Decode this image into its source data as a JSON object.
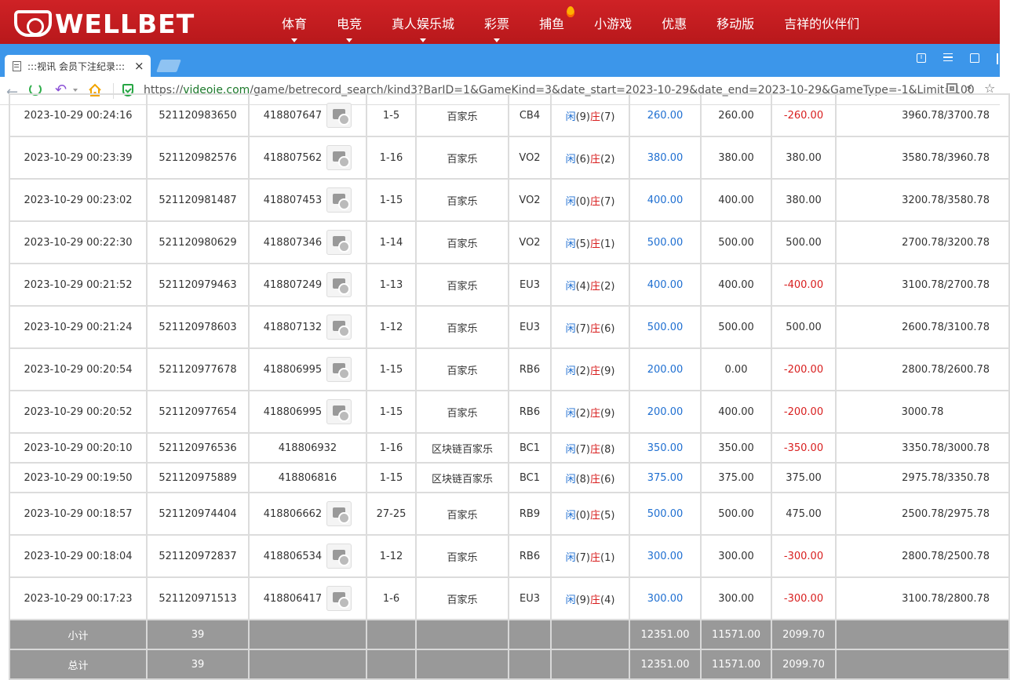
{
  "site": {
    "logo_text": "WELLBET",
    "nav": [
      {
        "label": "体育",
        "caret": true
      },
      {
        "label": "电竞",
        "caret": true
      },
      {
        "label": "真人娱乐城",
        "caret": true
      },
      {
        "label": "彩票",
        "caret": true
      },
      {
        "label": "捕鱼",
        "hot": true
      },
      {
        "label": "小游戏"
      },
      {
        "label": "优惠"
      },
      {
        "label": "移动版"
      },
      {
        "label": "吉祥的伙伴们"
      }
    ]
  },
  "browser": {
    "tab_title": ":::视讯 会员下注纪录:::",
    "tab_close": "×",
    "url_prefix": "https://",
    "url_host": "videoie.com",
    "url_path": "/game/betrecord_search/kind3?BarID=1&GameKind=3&date_start=2023-10-29&date_end=2023-10-29&GameType=-1&Limit=100",
    "bolt": "⚡",
    "star": "☆",
    "info": "i"
  },
  "labels": {
    "player": "闲",
    "banker": "庄"
  },
  "rows": [
    {
      "time": "2023-10-29 00:24:16",
      "bet_id": "521120983650",
      "round_id": "418807647",
      "video": true,
      "shoe": "1-5",
      "game": "百家乐",
      "table": "CB4",
      "player": "(9)",
      "banker": "(7)",
      "bet": "260.00",
      "valid": "260.00",
      "win": "-260.00",
      "win_neg": true,
      "balance": "3960.78/3700.78",
      "h": 54
    },
    {
      "time": "2023-10-29 00:23:39",
      "bet_id": "521120982576",
      "round_id": "418807562",
      "video": true,
      "shoe": "1-16",
      "game": "百家乐",
      "table": "VO2",
      "player": "(6)",
      "banker": "(2)",
      "bet": "380.00",
      "valid": "380.00",
      "win": "380.00",
      "win_neg": false,
      "balance": "3580.78/3960.78",
      "h": 54
    },
    {
      "time": "2023-10-29 00:23:02",
      "bet_id": "521120981487",
      "round_id": "418807453",
      "video": true,
      "shoe": "1-15",
      "game": "百家乐",
      "table": "VO2",
      "player": "(0)",
      "banker": "(7)",
      "bet": "400.00",
      "valid": "400.00",
      "win": "380.00",
      "win_neg": false,
      "balance": "3200.78/3580.78",
      "h": 54
    },
    {
      "time": "2023-10-29 00:22:30",
      "bet_id": "521120980629",
      "round_id": "418807346",
      "video": true,
      "shoe": "1-14",
      "game": "百家乐",
      "table": "VO2",
      "player": "(5)",
      "banker": "(1)",
      "bet": "500.00",
      "valid": "500.00",
      "win": "500.00",
      "win_neg": false,
      "balance": "2700.78/3200.78",
      "h": 54
    },
    {
      "time": "2023-10-29 00:21:52",
      "bet_id": "521120979463",
      "round_id": "418807249",
      "video": true,
      "shoe": "1-13",
      "game": "百家乐",
      "table": "EU3",
      "player": "(4)",
      "banker": "(2)",
      "bet": "400.00",
      "valid": "400.00",
      "win": "-400.00",
      "win_neg": true,
      "balance": "3100.78/2700.78",
      "h": 54
    },
    {
      "time": "2023-10-29 00:21:24",
      "bet_id": "521120978603",
      "round_id": "418807132",
      "video": true,
      "shoe": "1-12",
      "game": "百家乐",
      "table": "EU3",
      "player": "(7)",
      "banker": "(6)",
      "bet": "500.00",
      "valid": "500.00",
      "win": "500.00",
      "win_neg": false,
      "balance": "2600.78/3100.78",
      "h": 54
    },
    {
      "time": "2023-10-29 00:20:54",
      "bet_id": "521120977678",
      "round_id": "418806995",
      "video": true,
      "shoe": "1-15",
      "game": "百家乐",
      "table": "RB6",
      "player": "(2)",
      "banker": "(9)",
      "bet": "200.00",
      "valid": "0.00",
      "win": "-200.00",
      "win_neg": true,
      "balance": "2800.78/2600.78",
      "h": 54
    },
    {
      "time": "2023-10-29 00:20:52",
      "bet_id": "521120977654",
      "round_id": "418806995",
      "video": true,
      "shoe": "1-15",
      "game": "百家乐",
      "table": "RB6",
      "player": "(2)",
      "banker": "(9)",
      "bet": "200.00",
      "valid": "400.00",
      "win": "-200.00",
      "win_neg": true,
      "balance": "3000.78",
      "balance_center": true,
      "h": 54
    },
    {
      "time": "2023-10-29 00:20:10",
      "bet_id": "521120976536",
      "round_id": "418806932",
      "video": false,
      "shoe": "1-16",
      "game": "区块链百家乐",
      "table": "BC1",
      "player": "(7)",
      "banker": "(8)",
      "bet": "350.00",
      "valid": "350.00",
      "win": "-350.00",
      "win_neg": true,
      "balance": "3350.78/3000.78",
      "h": 38
    },
    {
      "time": "2023-10-29 00:19:50",
      "bet_id": "521120975889",
      "round_id": "418806816",
      "video": false,
      "shoe": "1-15",
      "game": "区块链百家乐",
      "table": "BC1",
      "player": "(8)",
      "banker": "(6)",
      "bet": "375.00",
      "valid": "375.00",
      "win": "375.00",
      "win_neg": false,
      "balance": "2975.78/3350.78",
      "h": 38
    },
    {
      "time": "2023-10-29 00:18:57",
      "bet_id": "521120974404",
      "round_id": "418806662",
      "video": true,
      "shoe": "27-25",
      "game": "百家乐",
      "table": "RB9",
      "player": "(0)",
      "banker": "(5)",
      "bet": "500.00",
      "valid": "500.00",
      "win": "475.00",
      "win_neg": false,
      "balance": "2500.78/2975.78",
      "h": 54
    },
    {
      "time": "2023-10-29 00:18:04",
      "bet_id": "521120972837",
      "round_id": "418806534",
      "video": true,
      "shoe": "1-12",
      "game": "百家乐",
      "table": "RB6",
      "player": "(7)",
      "banker": "(1)",
      "bet": "300.00",
      "valid": "300.00",
      "win": "-300.00",
      "win_neg": true,
      "balance": "2800.78/2500.78",
      "h": 54
    },
    {
      "time": "2023-10-29 00:17:23",
      "bet_id": "521120971513",
      "round_id": "418806417",
      "video": true,
      "shoe": "1-6",
      "game": "百家乐",
      "table": "EU3",
      "player": "(9)",
      "banker": "(4)",
      "bet": "300.00",
      "valid": "300.00",
      "win": "-300.00",
      "win_neg": true,
      "balance": "3100.78/2800.78",
      "h": 54
    }
  ],
  "summary": [
    {
      "label": "小计",
      "count": "39",
      "bet": "12351.00",
      "valid": "11571.00",
      "win": "2099.70"
    },
    {
      "label": "总计",
      "count": "39",
      "bet": "12351.00",
      "valid": "11571.00",
      "win": "2099.70"
    }
  ]
}
